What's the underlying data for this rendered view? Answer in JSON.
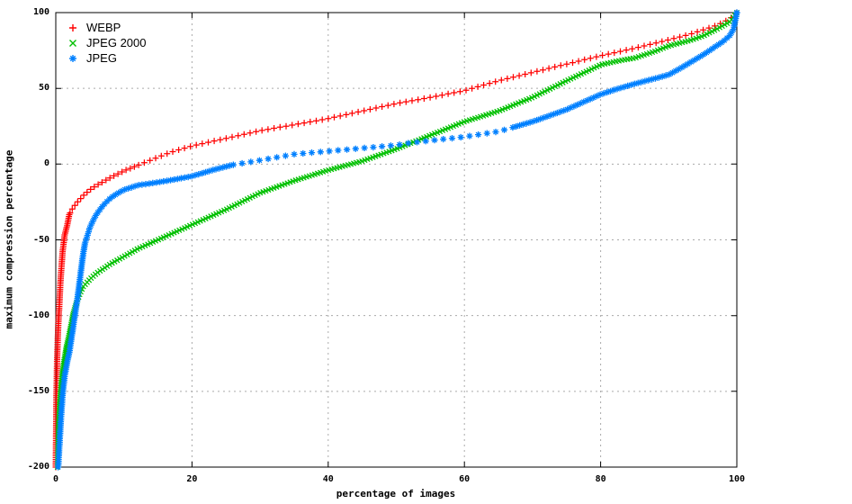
{
  "chart_data": {
    "type": "scatter",
    "title": "",
    "xlabel": "percentage of images",
    "ylabel": "maximum compression percentage",
    "xlim": [
      0,
      100
    ],
    "ylim": [
      -200,
      100
    ],
    "xticks": [
      0,
      20,
      40,
      60,
      80,
      100
    ],
    "yticks": [
      100,
      50,
      0,
      -50,
      -100,
      -150,
      -200
    ],
    "grid": "dashed",
    "grid_color": "#aaaaaa",
    "axis_color": "#000000",
    "background": "#ffffff",
    "legend_position": "top-left-inside",
    "series": [
      {
        "name": "WEBP",
        "color": "#ff0000",
        "marker": "plus",
        "points": [
          [
            0,
            -200
          ],
          [
            0.1,
            -152
          ],
          [
            0.2,
            -128
          ],
          [
            0.35,
            -108
          ],
          [
            0.5,
            -95
          ],
          [
            0.7,
            -77
          ],
          [
            1,
            -58
          ],
          [
            1.3,
            -47
          ],
          [
            1.7,
            -40
          ],
          [
            2,
            -33
          ],
          [
            2.5,
            -29
          ],
          [
            3,
            -26
          ],
          [
            4,
            -21
          ],
          [
            5,
            -17
          ],
          [
            6,
            -14
          ],
          [
            8,
            -9
          ],
          [
            10,
            -4.5
          ],
          [
            12.5,
            0
          ],
          [
            15,
            4.5
          ],
          [
            17,
            8
          ],
          [
            20,
            12
          ],
          [
            25,
            17
          ],
          [
            30,
            22
          ],
          [
            35,
            26
          ],
          [
            40,
            30
          ],
          [
            45,
            35
          ],
          [
            50,
            40
          ],
          [
            55,
            44
          ],
          [
            60,
            48.5
          ],
          [
            65,
            55
          ],
          [
            70,
            60.5
          ],
          [
            75,
            66
          ],
          [
            80,
            71.5
          ],
          [
            85,
            76.5
          ],
          [
            90,
            82
          ],
          [
            93,
            85.5
          ],
          [
            95,
            88.5
          ],
          [
            97,
            91.5
          ],
          [
            98,
            93.5
          ],
          [
            99,
            96
          ],
          [
            100,
            100
          ]
        ]
      },
      {
        "name": "JPEG 2000",
        "color": "#00c000",
        "marker": "cross",
        "points": [
          [
            0.25,
            -200
          ],
          [
            0.4,
            -172
          ],
          [
            0.6,
            -155
          ],
          [
            0.8,
            -145
          ],
          [
            1,
            -136
          ],
          [
            1.5,
            -122
          ],
          [
            2,
            -112
          ],
          [
            2.5,
            -100
          ],
          [
            3,
            -92
          ],
          [
            3.5,
            -86
          ],
          [
            4,
            -81
          ],
          [
            5,
            -76
          ],
          [
            6,
            -72
          ],
          [
            7,
            -69
          ],
          [
            8,
            -66
          ],
          [
            10,
            -61
          ],
          [
            12,
            -56
          ],
          [
            15,
            -50
          ],
          [
            20,
            -40
          ],
          [
            25,
            -30
          ],
          [
            30,
            -19
          ],
          [
            35,
            -11
          ],
          [
            40,
            -4
          ],
          [
            45,
            2
          ],
          [
            50,
            10
          ],
          [
            55,
            19
          ],
          [
            60,
            28
          ],
          [
            65,
            35
          ],
          [
            70,
            44
          ],
          [
            75,
            55
          ],
          [
            80,
            65.5
          ],
          [
            83,
            68.5
          ],
          [
            85,
            70
          ],
          [
            88,
            74.5
          ],
          [
            90,
            78
          ],
          [
            93,
            81.5
          ],
          [
            95,
            84.5
          ],
          [
            97,
            89
          ],
          [
            98,
            91.5
          ],
          [
            99,
            94
          ],
          [
            100,
            100
          ]
        ]
      },
      {
        "name": "JPEG",
        "color": "#0080ff",
        "marker": "asterisk",
        "points": [
          [
            0.35,
            -200
          ],
          [
            0.6,
            -180
          ],
          [
            0.8,
            -165
          ],
          [
            1,
            -152
          ],
          [
            1.3,
            -140
          ],
          [
            1.7,
            -130
          ],
          [
            2,
            -124
          ],
          [
            2.4,
            -112
          ],
          [
            2.8,
            -100
          ],
          [
            3.2,
            -88
          ],
          [
            3.6,
            -74
          ],
          [
            4,
            -60
          ],
          [
            4.3,
            -52
          ],
          [
            5,
            -42
          ],
          [
            5.5,
            -37
          ],
          [
            6,
            -33
          ],
          [
            7,
            -27
          ],
          [
            8,
            -22.5
          ],
          [
            9,
            -19.5
          ],
          [
            10,
            -17
          ],
          [
            12,
            -14
          ],
          [
            15,
            -12
          ],
          [
            17,
            -10.5
          ],
          [
            20,
            -8
          ],
          [
            23,
            -4
          ],
          [
            26,
            -0.5
          ],
          [
            30,
            2.5
          ],
          [
            35,
            6.5
          ],
          [
            40,
            8.5
          ],
          [
            45,
            10.5
          ],
          [
            50,
            12.5
          ],
          [
            52,
            14
          ],
          [
            55,
            15.5
          ],
          [
            60,
            18
          ],
          [
            65,
            21.5
          ],
          [
            70,
            28
          ],
          [
            75,
            36
          ],
          [
            80,
            46
          ],
          [
            82,
            49
          ],
          [
            85,
            53
          ],
          [
            88,
            56.5
          ],
          [
            90,
            59
          ],
          [
            92,
            64
          ],
          [
            95,
            72
          ],
          [
            96,
            75
          ],
          [
            97,
            78
          ],
          [
            98,
            81
          ],
          [
            99,
            85
          ],
          [
            99.5,
            89
          ],
          [
            100,
            100
          ]
        ]
      }
    ]
  }
}
